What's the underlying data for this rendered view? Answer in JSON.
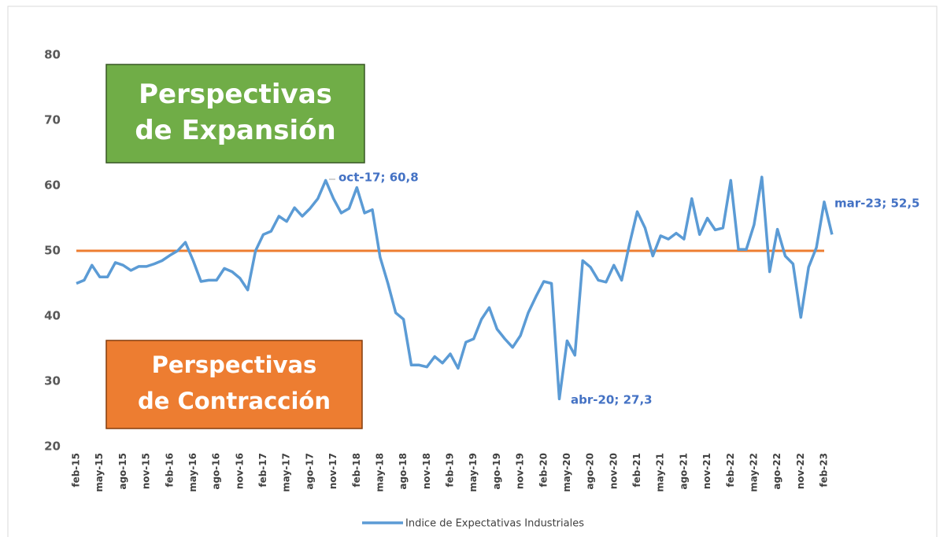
{
  "chart_data": {
    "type": "line",
    "categories": [
      "feb-15",
      null,
      null,
      "may-15",
      null,
      null,
      "ago-15",
      null,
      null,
      "nov-15",
      null,
      null,
      "feb-16",
      null,
      null,
      "may-16",
      null,
      null,
      "ago-16",
      null,
      null,
      "nov-16",
      null,
      null,
      "feb-17",
      null,
      null,
      "may-17",
      null,
      null,
      "ago-17",
      null,
      null,
      "nov-17",
      null,
      null,
      "feb-18",
      null,
      null,
      "may-18",
      null,
      null,
      "ago-18",
      null,
      null,
      "nov-18",
      null,
      null,
      "feb-19",
      null,
      null,
      "may-19",
      null,
      null,
      "ago-19",
      null,
      null,
      "nov-19",
      null,
      null,
      "feb-20",
      null,
      null,
      "may-20",
      null,
      null,
      "ago-20",
      null,
      null,
      "nov-20",
      null,
      null,
      "feb-21",
      null,
      null,
      "may-21",
      null,
      null,
      "ago-21",
      null,
      null,
      "nov-21",
      null,
      null,
      "feb-22",
      null,
      null,
      "may-22",
      null,
      null,
      "ago-22",
      null,
      null,
      "nov-22",
      null,
      null,
      "feb-23",
      null
    ],
    "series": [
      {
        "name": "Indice de Expectativas Industriales",
        "color": "#5b9bd5",
        "values": [
          45,
          45.5,
          47.8,
          46,
          46,
          48.2,
          47.8,
          47,
          47.6,
          47.6,
          48,
          48.5,
          49.3,
          50,
          51.3,
          48.5,
          45.3,
          45.5,
          45.5,
          47.3,
          46.8,
          45.8,
          44,
          50,
          52.5,
          53,
          55.3,
          54.5,
          56.6,
          55.3,
          56.5,
          58,
          60.8,
          58,
          55.8,
          56.5,
          59.7,
          55.8,
          56.3,
          49,
          45,
          40.5,
          39.5,
          32.5,
          32.5,
          32.2,
          33.8,
          32.8,
          34.2,
          32,
          36,
          36.5,
          39.5,
          41.3,
          38,
          36.5,
          35.2,
          37,
          40.5,
          43,
          45.3,
          45,
          27.3,
          36.2,
          34,
          48.5,
          47.5,
          45.5,
          45.2,
          47.8,
          45.5,
          51,
          56,
          53.5,
          49.2,
          52.3,
          51.8,
          52.7,
          51.8,
          58,
          52.5,
          55,
          53.2,
          53.5,
          60.8,
          50.2,
          50.2,
          54,
          61.3,
          46.8,
          53.3,
          49.2,
          48,
          39.8,
          47.5,
          50.5,
          57.5,
          52.5
        ]
      }
    ],
    "ylim": [
      20,
      80
    ],
    "yticks": [
      20,
      30,
      40,
      50,
      60,
      70,
      80
    ],
    "reference_line": {
      "value": 50,
      "color": "#ed7d31"
    },
    "annotations": [
      "oct-17; 60,8",
      "abr-20; 27,3",
      "mar-23; 52,5"
    ],
    "boxes": [
      {
        "lines": [
          "Perspectivas",
          "de Expansión"
        ],
        "color": "#70ad47"
      },
      {
        "lines": [
          "Perspectivas",
          "de Contracción"
        ],
        "color": "#ed7d31"
      }
    ],
    "legend": "bottom"
  }
}
